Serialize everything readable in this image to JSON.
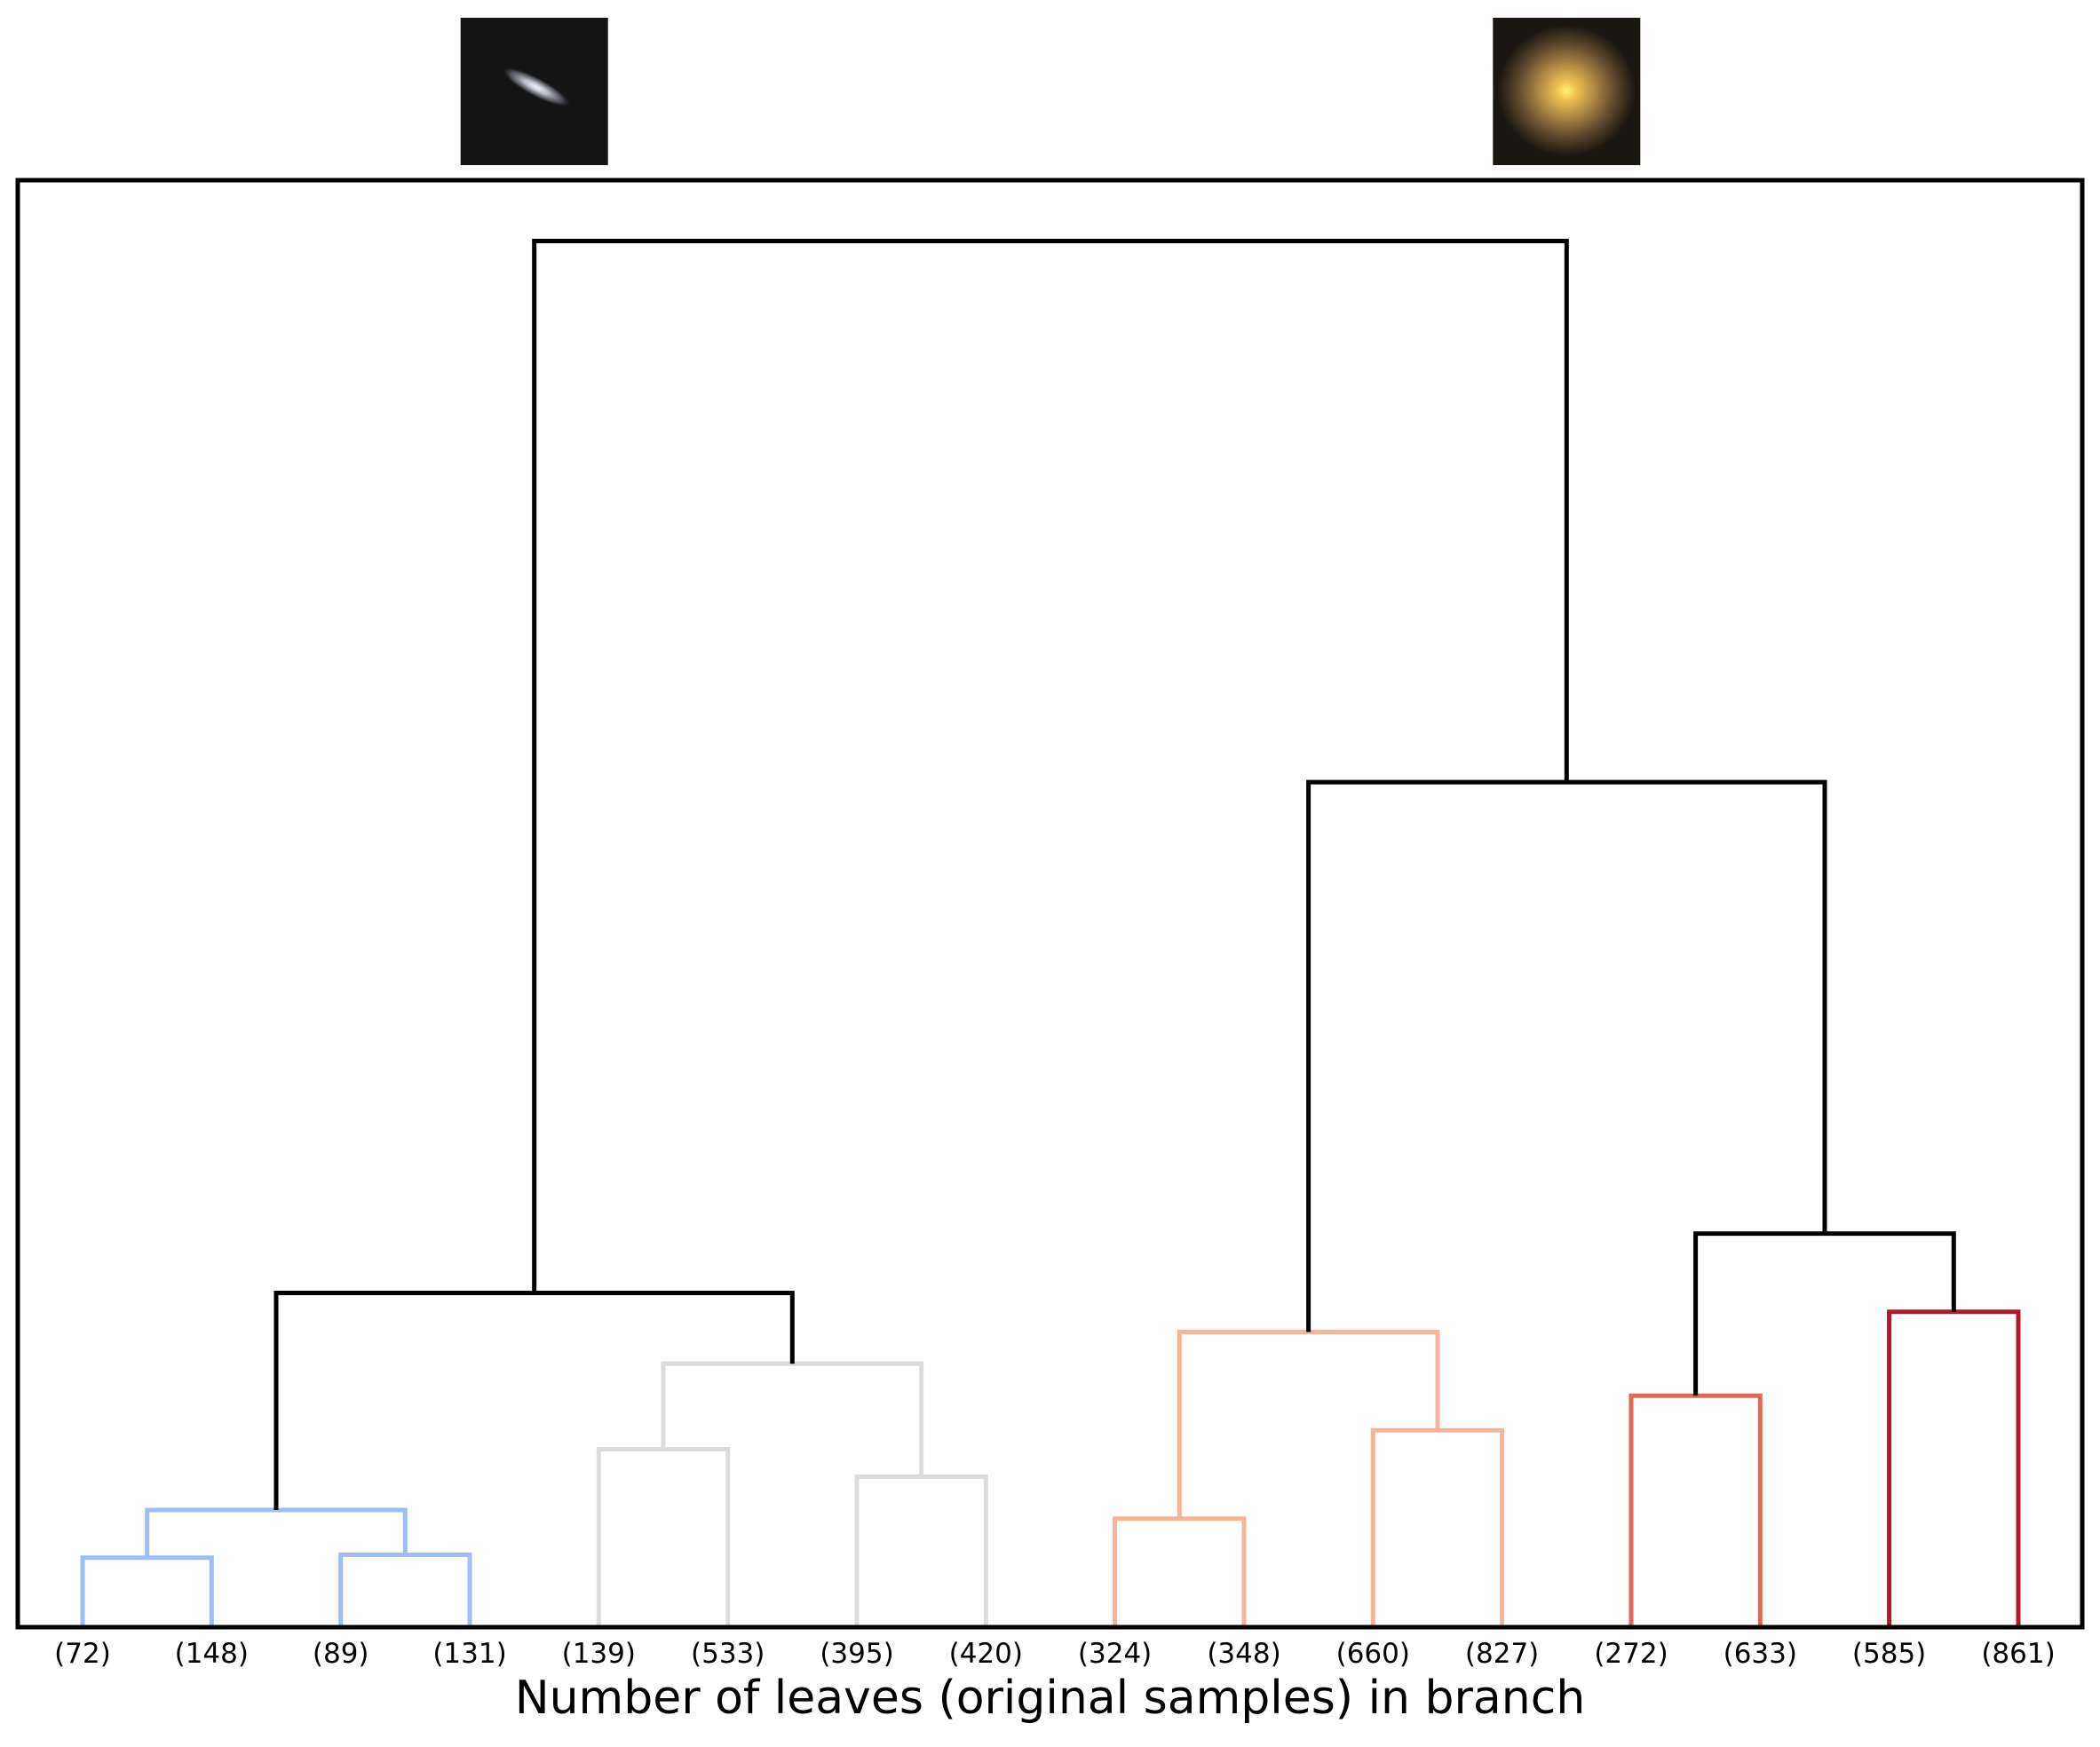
{
  "chart_data": {
    "type": "dendrogram",
    "title": "",
    "xlabel": "Number of leaves (original samples) in branch",
    "ylabel": "",
    "ylim": [
      0,
      1
    ],
    "grid": false,
    "leaves": [
      {
        "label": "(72)",
        "count": 72
      },
      {
        "label": "(148)",
        "count": 148
      },
      {
        "label": "(89)",
        "count": 89
      },
      {
        "label": "(131)",
        "count": 131
      },
      {
        "label": "(139)",
        "count": 139
      },
      {
        "label": "(533)",
        "count": 533
      },
      {
        "label": "(395)",
        "count": 395
      },
      {
        "label": "(420)",
        "count": 420
      },
      {
        "label": "(324)",
        "count": 324
      },
      {
        "label": "(348)",
        "count": 348
      },
      {
        "label": "(660)",
        "count": 660
      },
      {
        "label": "(827)",
        "count": 827
      },
      {
        "label": "(272)",
        "count": 272
      },
      {
        "label": "(633)",
        "count": 633
      },
      {
        "label": "(585)",
        "count": 585
      },
      {
        "label": "(861)",
        "count": 861
      }
    ],
    "merges": [
      {
        "id": "m1",
        "left": "L0",
        "right": "L1",
        "height": 0.048,
        "color": "#9ebef5"
      },
      {
        "id": "m2",
        "left": "L2",
        "right": "L3",
        "height": 0.05,
        "color": "#9ebef5"
      },
      {
        "id": "m3",
        "left": "m1",
        "right": "m2",
        "height": 0.081,
        "color": "#9ebef5"
      },
      {
        "id": "m4",
        "left": "L4",
        "right": "L5",
        "height": 0.123,
        "color": "#dcdcdc"
      },
      {
        "id": "m5",
        "left": "L6",
        "right": "L7",
        "height": 0.104,
        "color": "#dcdcdc"
      },
      {
        "id": "m6",
        "left": "m4",
        "right": "m5",
        "height": 0.182,
        "color": "#dcdcdc"
      },
      {
        "id": "m7",
        "left": "m3",
        "right": "m6",
        "height": 0.231,
        "color": "#000000"
      },
      {
        "id": "m8",
        "left": "L8",
        "right": "L9",
        "height": 0.075,
        "color": "#f4b59a"
      },
      {
        "id": "m9",
        "left": "L10",
        "right": "L11",
        "height": 0.136,
        "color": "#f4b59a"
      },
      {
        "id": "m10",
        "left": "m8",
        "right": "m9",
        "height": 0.204,
        "color": "#f4b59a"
      },
      {
        "id": "m11",
        "left": "L12",
        "right": "L13",
        "height": 0.16,
        "color": "#dd6a55"
      },
      {
        "id": "m12",
        "left": "L14",
        "right": "L15",
        "height": 0.218,
        "color": "#b2182b"
      },
      {
        "id": "m13",
        "left": "m11",
        "right": "m12",
        "height": 0.272,
        "color": "#000000"
      },
      {
        "id": "m14",
        "left": "m10",
        "right": "m13",
        "height": 0.584,
        "color": "#000000"
      },
      {
        "id": "m15",
        "left": "m7",
        "right": "m14",
        "height": 0.958,
        "color": "#000000"
      }
    ],
    "thumbnails": [
      {
        "name": "edge-on-galaxy",
        "above_leaf": 3.5,
        "kind": "disk"
      },
      {
        "name": "elliptical-galaxy",
        "above_leaf": 11.5,
        "kind": "elliptical"
      }
    ]
  }
}
